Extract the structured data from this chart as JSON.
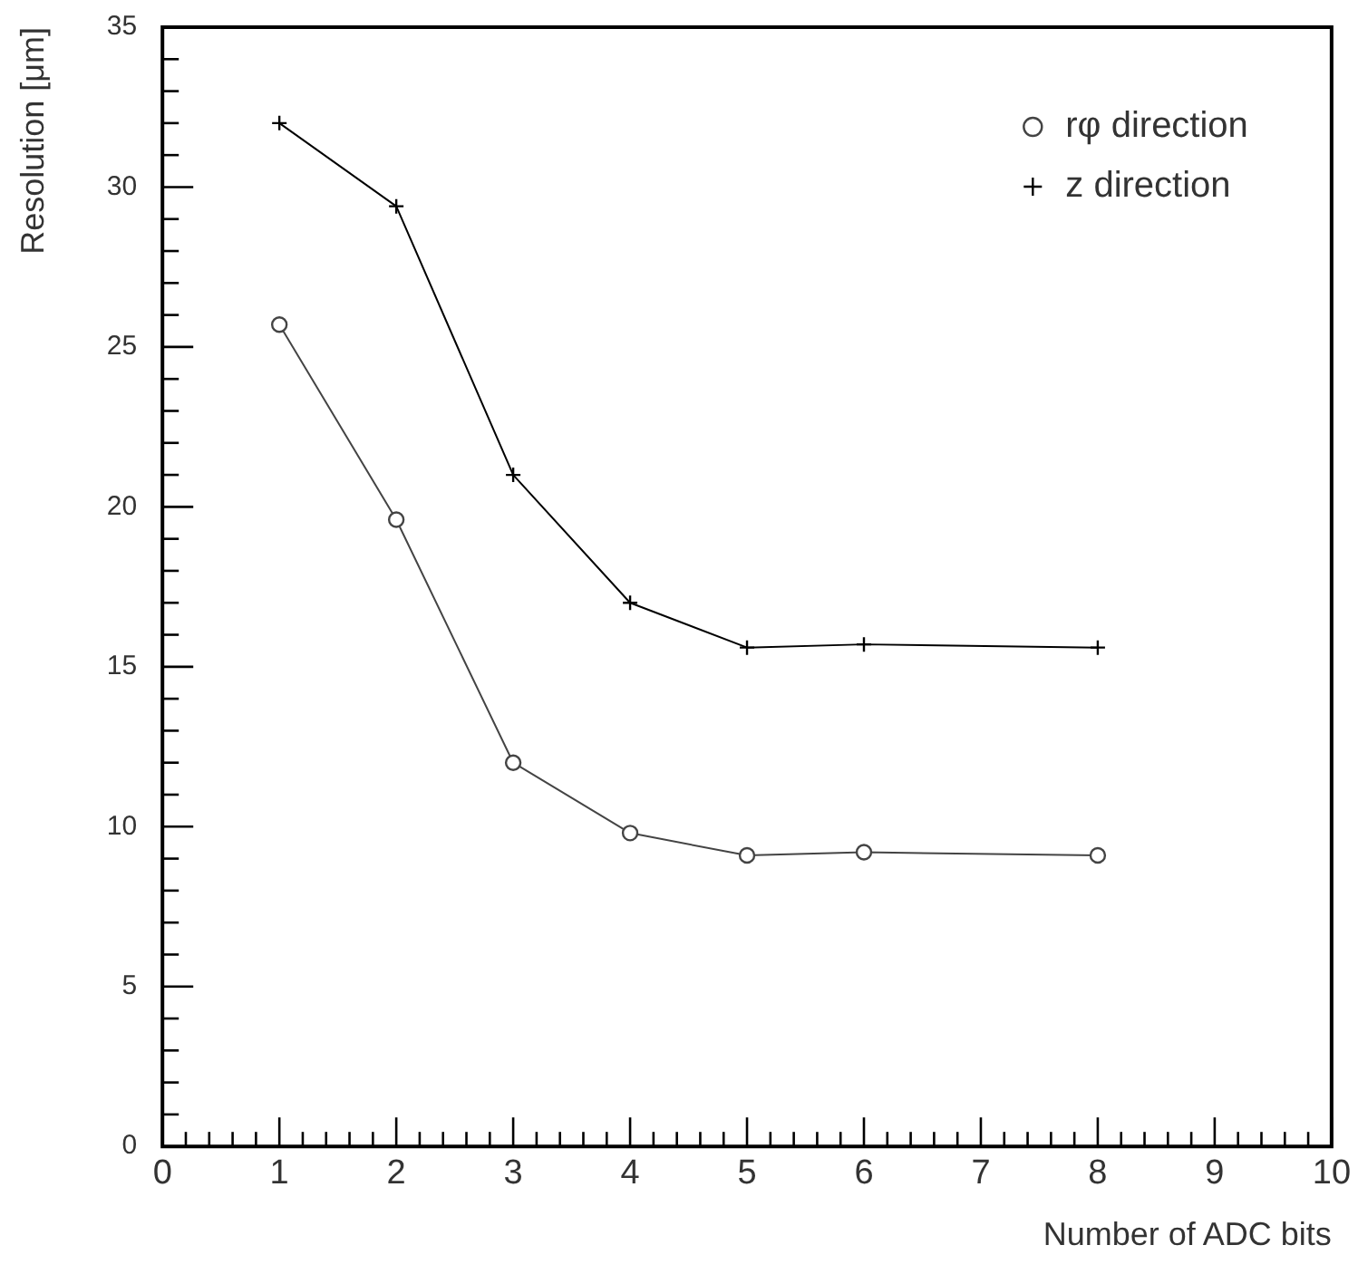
{
  "chart_data": {
    "type": "line",
    "xlabel": "Number of ADC bits",
    "ylabel": "Resolution [μm]",
    "x": [
      1,
      2,
      3,
      4,
      5,
      6,
      8
    ],
    "series": [
      {
        "name": "rφ direction",
        "color": "#444444",
        "marker": "circle",
        "values": [
          25.7,
          19.6,
          12,
          9.8,
          9.1,
          9.2,
          9.1
        ]
      },
      {
        "name": "z direction",
        "color": "#000000",
        "marker": "cross",
        "values": [
          32,
          29.4,
          21,
          17,
          15.6,
          15.7,
          15.6
        ]
      }
    ],
    "xlim": [
      0,
      10
    ],
    "ylim": [
      0,
      35
    ],
    "xticks": [
      0,
      {
        "value": 0.2,
        "label": null
      },
      {
        "value": 0.4,
        "label": null
      },
      {
        "value": 0.6,
        "label": null
      },
      {
        "value": 0.8,
        "label": null
      },
      1,
      {
        "value": 1.2,
        "label": null
      },
      {
        "value": 1.4,
        "label": null
      },
      {
        "value": 1.6,
        "label": null
      },
      {
        "value": 1.8,
        "label": null
      },
      2,
      {
        "value": 2.2,
        "label": null
      },
      {
        "value": 2.4,
        "label": null
      },
      {
        "value": 2.6,
        "label": null
      },
      {
        "value": 2.8,
        "label": null
      },
      3,
      {
        "value": 3.2,
        "label": null
      },
      {
        "value": 3.4,
        "label": null
      },
      {
        "value": 3.6,
        "label": null
      },
      {
        "value": 3.8,
        "label": null
      },
      4,
      {
        "value": 4.2,
        "label": null
      },
      {
        "value": 4.4,
        "label": null
      },
      {
        "value": 4.6,
        "label": null
      },
      {
        "value": 4.8,
        "label": null
      },
      5,
      {
        "value": 5.2,
        "label": null
      },
      {
        "value": 5.4,
        "label": null
      },
      {
        "value": 5.6,
        "label": null
      },
      {
        "value": 5.8,
        "label": null
      },
      6,
      {
        "value": 6.2,
        "label": null
      },
      {
        "value": 6.4,
        "label": null
      },
      {
        "value": 6.6,
        "label": null
      },
      {
        "value": 6.8,
        "label": null
      },
      7,
      {
        "value": 7.2,
        "label": null
      },
      {
        "value": 7.4,
        "label": null
      },
      {
        "value": 7.6,
        "label": null
      },
      {
        "value": 7.8,
        "label": null
      },
      8,
      {
        "value": 8.2,
        "label": null
      },
      {
        "value": 8.4,
        "label": null
      },
      {
        "value": 8.6,
        "label": null
      },
      {
        "value": 8.8,
        "label": null
      },
      9,
      {
        "value": 9.2,
        "label": null
      },
      {
        "value": 9.4,
        "label": null
      },
      {
        "value": 9.6,
        "label": null
      },
      {
        "value": 9.8,
        "label": null
      },
      10
    ],
    "yticks": [
      0,
      {
        "value": 1,
        "label": null
      },
      {
        "value": 2,
        "label": null
      },
      {
        "value": 3,
        "label": null
      },
      {
        "value": 4,
        "label": null
      },
      5,
      {
        "value": 6,
        "label": null
      },
      {
        "value": 7,
        "label": null
      },
      {
        "value": 8,
        "label": null
      },
      {
        "value": 9,
        "label": null
      },
      10,
      {
        "value": 11,
        "label": null
      },
      {
        "value": 12,
        "label": null
      },
      {
        "value": 13,
        "label": null
      },
      {
        "value": 14,
        "label": null
      },
      15,
      {
        "value": 16,
        "label": null
      },
      {
        "value": 17,
        "label": null
      },
      {
        "value": 18,
        "label": null
      },
      {
        "value": 19,
        "label": null
      },
      20,
      {
        "value": 21,
        "label": null
      },
      {
        "value": 22,
        "label": null
      },
      {
        "value": 23,
        "label": null
      },
      {
        "value": 24,
        "label": null
      },
      25,
      {
        "value": 26,
        "label": null
      },
      {
        "value": 27,
        "label": null
      },
      {
        "value": 28,
        "label": null
      },
      {
        "value": 29,
        "label": null
      },
      30,
      {
        "value": 31,
        "label": null
      },
      {
        "value": 32,
        "label": null
      },
      {
        "value": 33,
        "label": null
      },
      {
        "value": 34,
        "label": null
      },
      35
    ],
    "grid": false,
    "legend": "top right",
    "line_style": "solid"
  }
}
